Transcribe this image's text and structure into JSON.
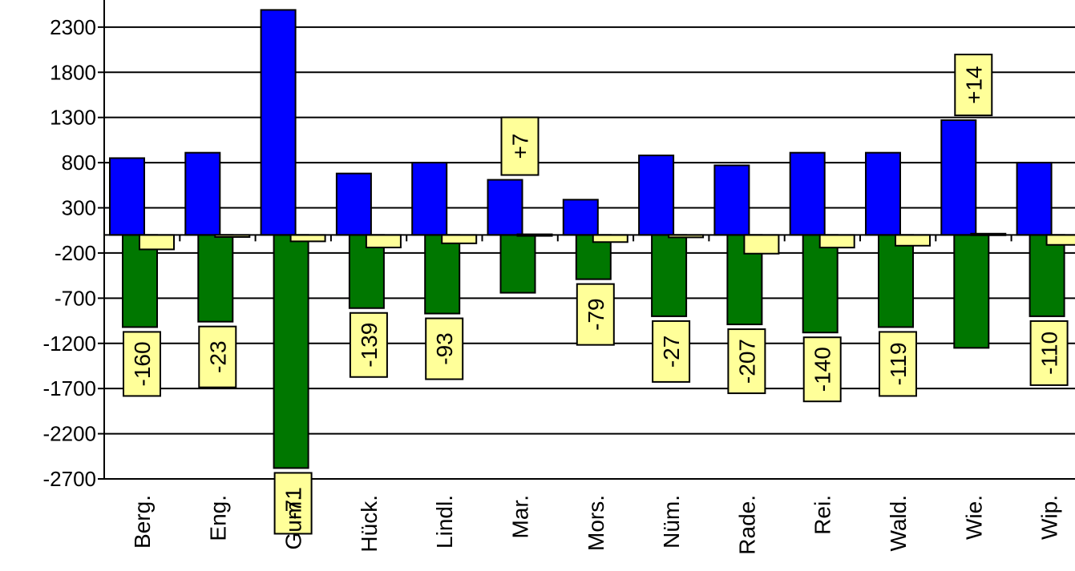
{
  "chart_data": {
    "type": "bar",
    "categories": [
      "Berg.",
      "Eng.",
      "Gum.",
      "Hück.",
      "Lindl.",
      "Mar.",
      "Mors.",
      "Nüm.",
      "Rade.",
      "Rei.",
      "Wald.",
      "Wie.",
      "Wip."
    ],
    "series": [
      {
        "values": [
          850,
          910,
          2490,
          680,
          800,
          610,
          390,
          880,
          770,
          910,
          910,
          1270,
          800
        ]
      },
      {
        "values": [
          -1020,
          -960,
          -2580,
          -810,
          -870,
          -640,
          -490,
          -900,
          -990,
          -1080,
          -1020,
          -1250,
          -900
        ]
      },
      {
        "values": [
          -160,
          -23,
          -71,
          -139,
          -93,
          7,
          -79,
          -27,
          -207,
          -140,
          -119,
          14,
          -110
        ]
      }
    ],
    "data_labels": [
      "-160",
      "-23",
      "-71",
      "-139",
      "-93",
      "+7",
      "-79",
      "-27",
      "-207",
      "-140",
      "-119",
      "+14",
      "-110"
    ],
    "y_ticks": [
      "2300",
      "1800",
      "1300",
      "800",
      "300",
      "-200",
      "-700",
      "-1200",
      "-1700",
      "-2200",
      "-2700"
    ],
    "ylim": [
      -2700,
      2600
    ],
    "grid": true,
    "colors": {
      "series1": "#0000ff",
      "series2": "#007700",
      "series3": "#ffff99",
      "label_box": "#ffff99",
      "axis": "#000000"
    }
  }
}
